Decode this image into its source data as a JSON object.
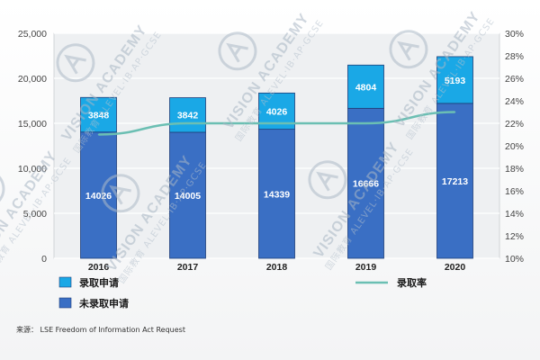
{
  "chart_data": {
    "type": "bar",
    "stacked": true,
    "categories": [
      "2016",
      "2017",
      "2018",
      "2019",
      "2020"
    ],
    "series": [
      {
        "name": "未录取申请",
        "values": [
          14026,
          14005,
          14339,
          16666,
          17213
        ],
        "color": "#3a6fc4",
        "role": "bottom"
      },
      {
        "name": "录取申请",
        "values": [
          3848,
          3842,
          4026,
          4804,
          5193
        ],
        "color": "#1aa8e6",
        "role": "top"
      }
    ],
    "line_series": {
      "name": "录取率",
      "values": [
        21.0,
        22.0,
        22.0,
        22.0,
        23.0
      ],
      "color": "#6bbfb3",
      "axis": "right"
    },
    "y_left": {
      "min": 0,
      "max": 25000,
      "ticks": [
        "0",
        "5,000",
        "10,000",
        "15,000",
        "20,000",
        "25,000"
      ]
    },
    "y_right": {
      "min": 10,
      "max": 30,
      "ticks": [
        "10%",
        "12%",
        "14%",
        "16%",
        "18%",
        "20%",
        "22%",
        "24%",
        "26%",
        "28%",
        "30%"
      ]
    },
    "grid": true,
    "legend_position": "bottom",
    "title": "",
    "xlabel": "",
    "ylabel": ""
  },
  "legend": [
    {
      "label": "录取申请",
      "color": "#1aa8e6",
      "kind": "box"
    },
    {
      "label": "未录取申请",
      "color": "#3a6fc4",
      "kind": "box"
    },
    {
      "label": "录取率",
      "color": "#6bbfb3",
      "kind": "line"
    }
  ],
  "source": "来源：  LSE Freedom of Information Act Request",
  "watermark": {
    "title": "VISION ACADEMY",
    "subtitle": "国际教育",
    "line": "ALEVEL·IB·AP·GCSE"
  },
  "colors": {
    "plot_bg": "#eef0f2",
    "grid": "#ffffff",
    "frame": "#c9ccd0"
  }
}
